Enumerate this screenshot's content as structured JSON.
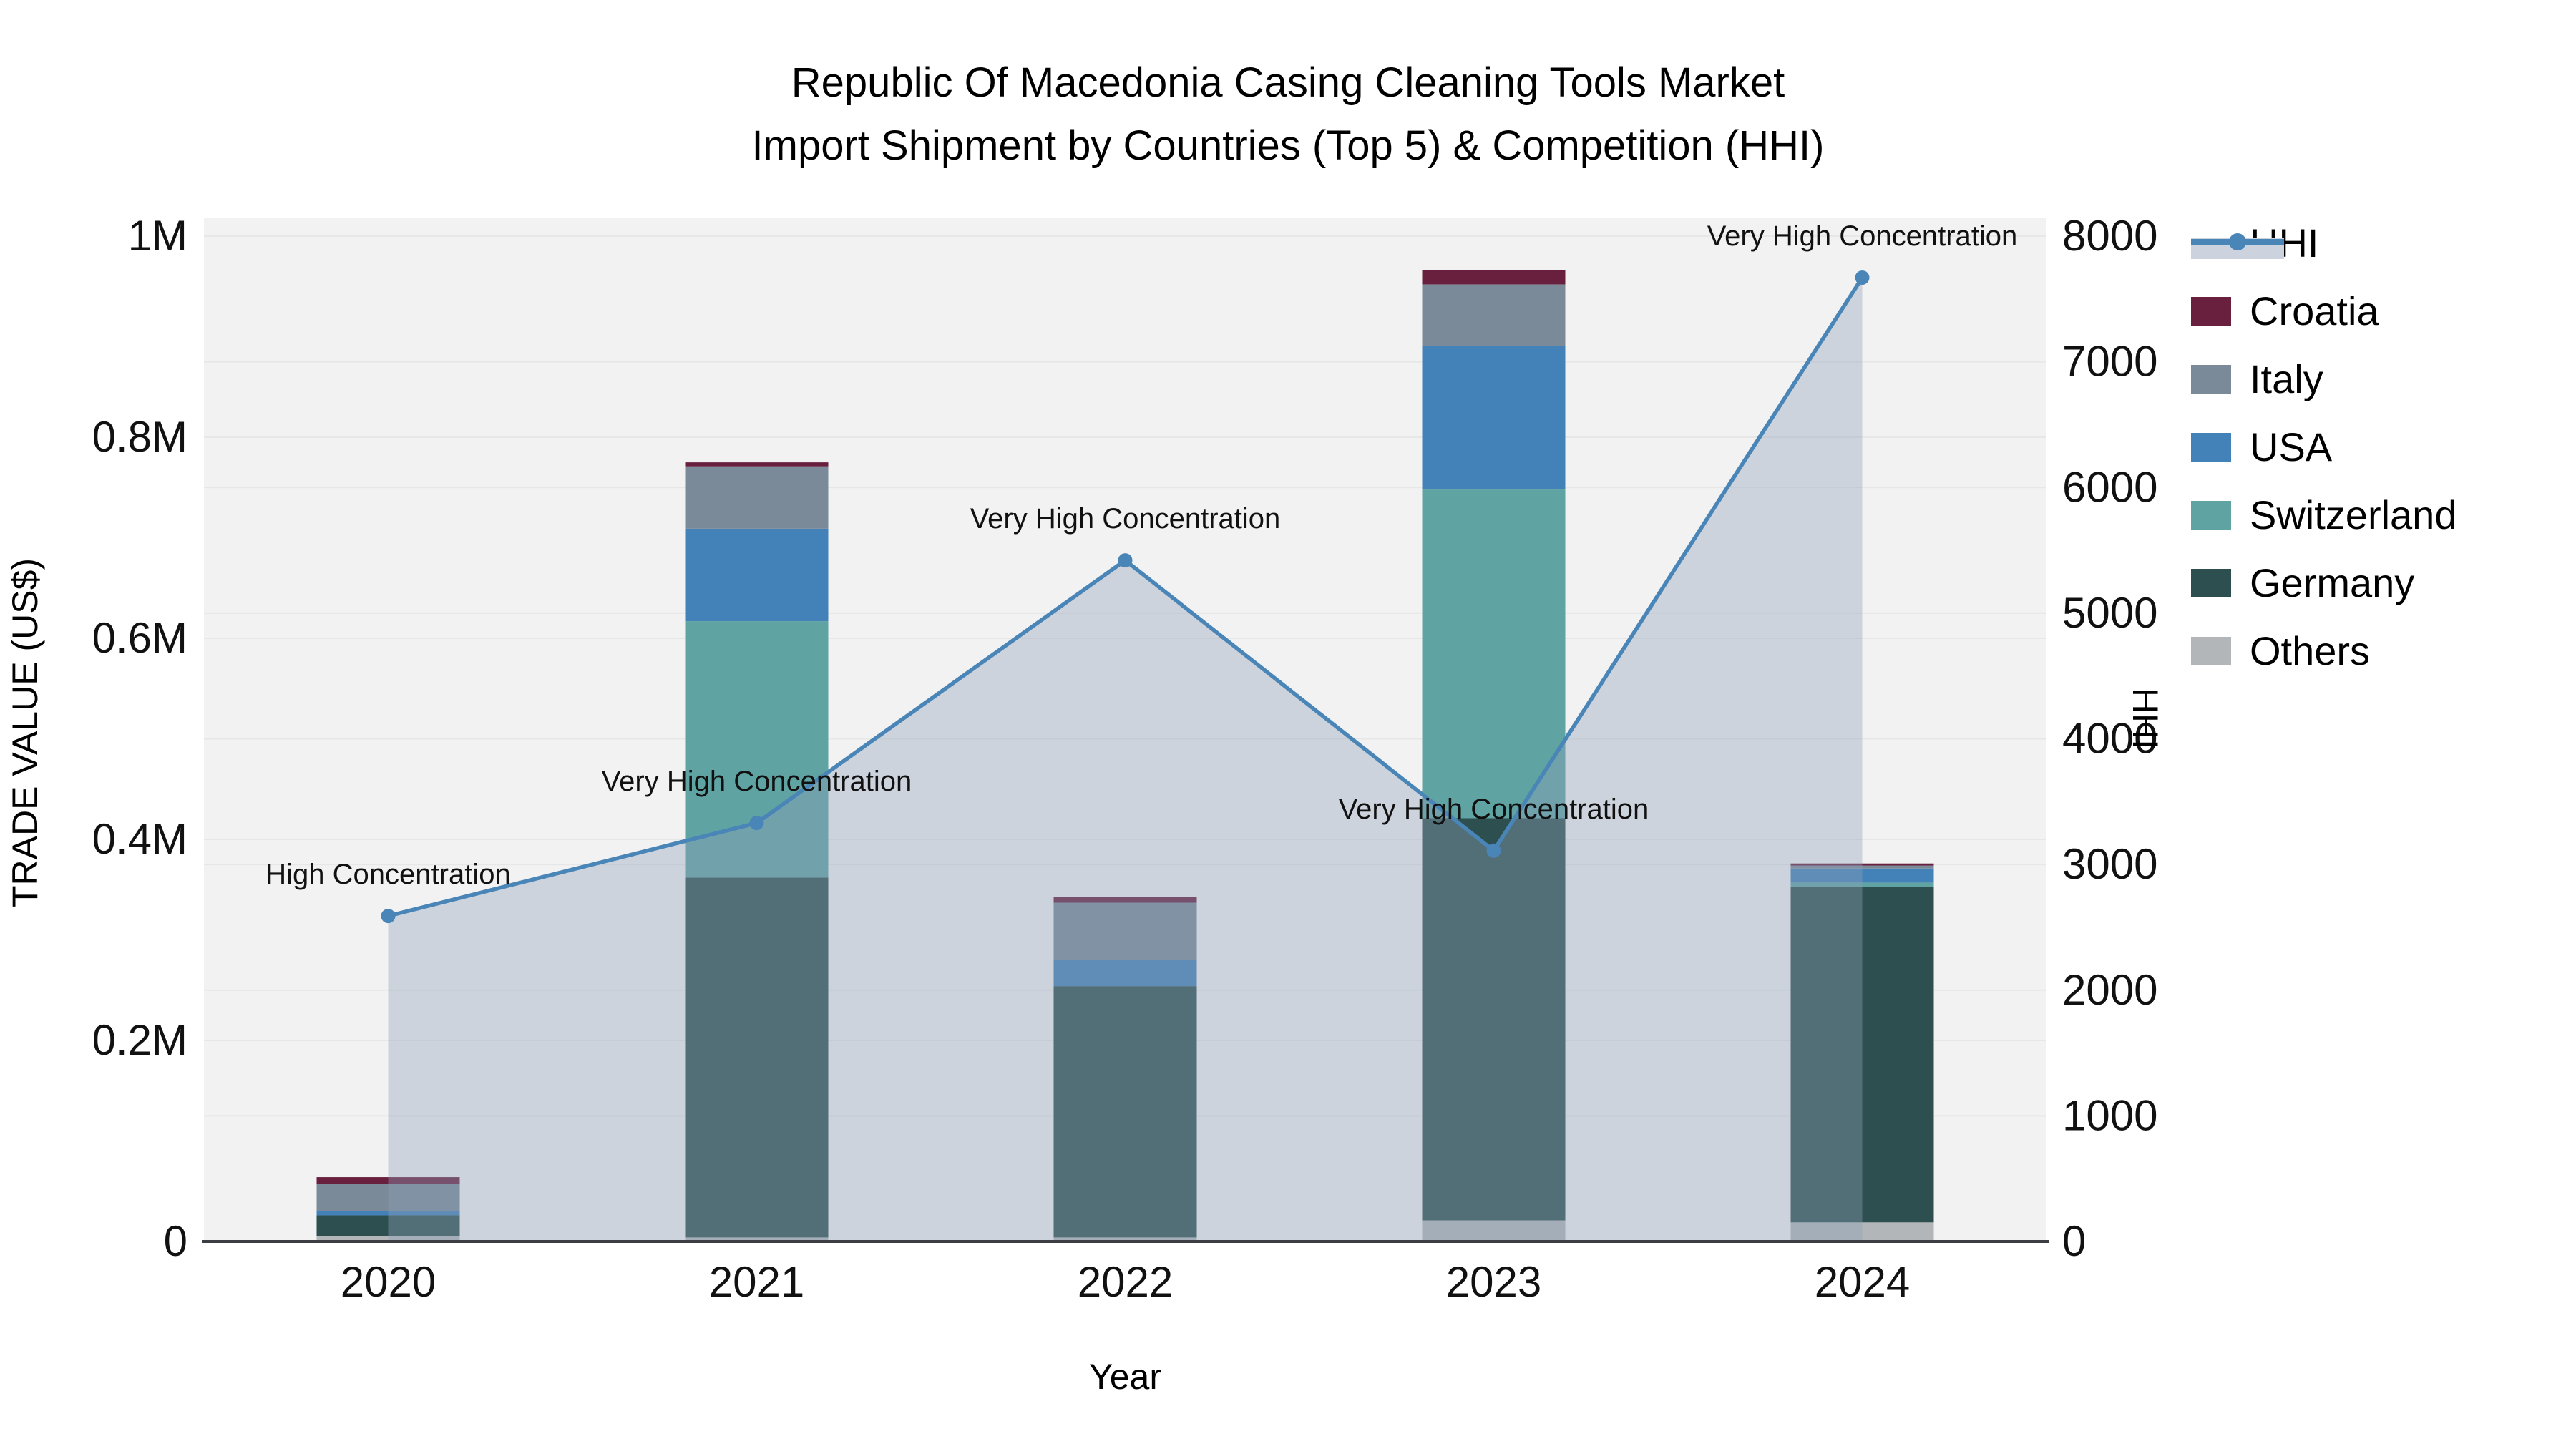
{
  "chart_data": {
    "type": "bar",
    "title_line1": "Republic Of Macedonia Casing Cleaning Tools Market",
    "title_line2": "Import Shipment by Countries (Top 5) & Competition (HHI)",
    "xlabel": "Year",
    "categories": [
      "2020",
      "2021",
      "2022",
      "2023",
      "2024"
    ],
    "y_left": {
      "title": "TRADE VALUE (US$)",
      "tick_labels": [
        "0",
        "0.2M",
        "0.4M",
        "0.6M",
        "0.8M",
        "1M"
      ],
      "tick_values": [
        0,
        200000,
        400000,
        600000,
        800000,
        1000000
      ],
      "max": 1000000
    },
    "y_right": {
      "title": "HHI",
      "tick_labels": [
        "0",
        "1000",
        "2000",
        "3000",
        "4000",
        "5000",
        "6000",
        "7000",
        "8000"
      ],
      "tick_values": [
        0,
        1000,
        2000,
        3000,
        4000,
        5000,
        6000,
        7000,
        8000
      ],
      "max": 8000
    },
    "series": [
      {
        "name": "Others",
        "color": "#b2b6b8",
        "values": [
          5000,
          4000,
          4000,
          21000,
          19000
        ]
      },
      {
        "name": "Germany",
        "color": "#2e4f4f",
        "values": [
          21000,
          358000,
          250000,
          400000,
          334000
        ]
      },
      {
        "name": "Switzerland",
        "color": "#60a3a3",
        "values": [
          0,
          255000,
          0,
          327000,
          4000
        ]
      },
      {
        "name": "USA",
        "color": "#4382b8",
        "values": [
          4000,
          92000,
          26000,
          143000,
          14000
        ]
      },
      {
        "name": "Italy",
        "color": "#7b8a99",
        "values": [
          27000,
          62000,
          57000,
          61000,
          3000
        ]
      },
      {
        "name": "Croatia",
        "color": "#68203e",
        "values": [
          7000,
          4000,
          6000,
          14000,
          2000
        ]
      }
    ],
    "hhi": {
      "name": "HHI",
      "color": "#4a85b7",
      "fill": "rgba(143,160,184,0.38)",
      "values": [
        2590,
        3330,
        5420,
        3110,
        7670
      ]
    },
    "annotations": [
      "High Concentration",
      "Very High Concentration",
      "Very High Concentration",
      "Very High Concentration",
      "Very High Concentration"
    ],
    "legend": [
      {
        "label": "HHI",
        "color": "#4a85b7"
      },
      {
        "label": "Croatia",
        "color": "#68203e"
      },
      {
        "label": "Italy",
        "color": "#7b8a99"
      },
      {
        "label": "USA",
        "color": "#4382b8"
      },
      {
        "label": "Switzerland",
        "color": "#60a3a3"
      },
      {
        "label": "Germany",
        "color": "#2e4f4f"
      },
      {
        "label": "Others",
        "color": "#b2b6b8"
      }
    ],
    "colors": {
      "plot_background": "#f2f2f2",
      "gridline": "#e7e7e7",
      "axis_line": "#3b3f44"
    }
  }
}
